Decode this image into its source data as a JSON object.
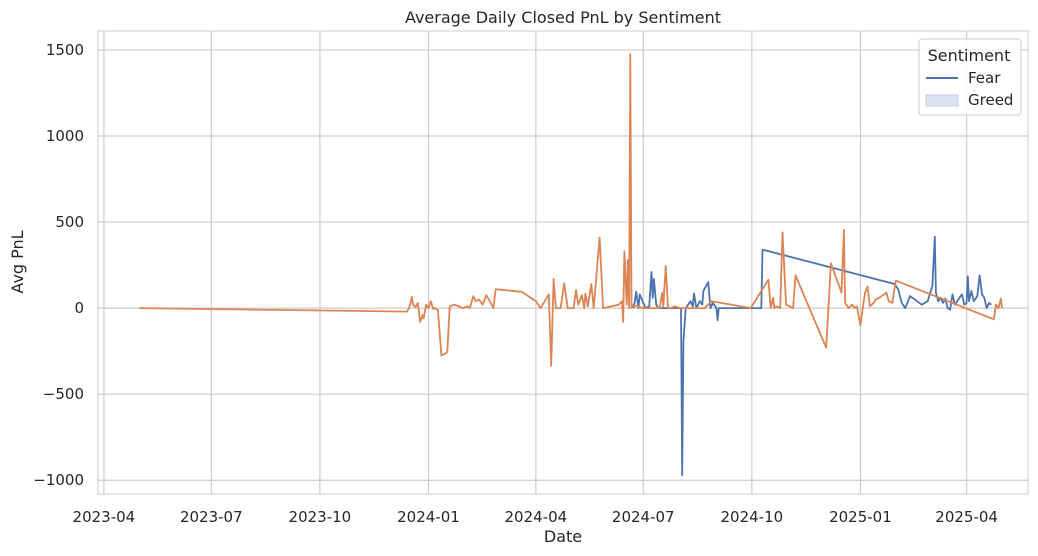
{
  "chart_data": {
    "type": "line",
    "title": "Average Daily Closed PnL by Sentiment",
    "xlabel": "Date",
    "ylabel": "Avg PnL",
    "x_axis_type": "date",
    "xlim": [
      "2023-03-27",
      "2025-05-23"
    ],
    "ylim": [
      -1080,
      1610
    ],
    "x_ticks": [
      "2023-04-01",
      "2023-07-01",
      "2023-10-01",
      "2024-01-01",
      "2024-04-01",
      "2024-07-01",
      "2024-10-01",
      "2025-01-01",
      "2025-04-01"
    ],
    "x_tick_labels": [
      "2023-04",
      "2023-07",
      "2023-10",
      "2024-01",
      "2024-04",
      "2024-07",
      "2024-10",
      "2025-01",
      "2025-04"
    ],
    "y_ticks": [
      -1000,
      -500,
      0,
      500,
      1000,
      1500
    ],
    "y_tick_labels": [
      "−1000",
      "−500",
      "0",
      "500",
      "1000",
      "1500"
    ],
    "grid": true,
    "legend": {
      "title": "Sentiment",
      "position": "top-right",
      "entries": [
        {
          "label": "Fear",
          "marker": "line",
          "color": "#4c72b0"
        },
        {
          "label": "Greed",
          "marker": "patch",
          "color": "#dbe3f0"
        }
      ]
    },
    "series": [
      {
        "name": "Fear",
        "color": "#4c72b0",
        "points": [
          [
            "2024-06-23",
            0
          ],
          [
            "2024-06-25",
            95
          ],
          [
            "2024-06-27",
            0
          ],
          [
            "2024-06-28",
            80
          ],
          [
            "2024-07-01",
            30
          ],
          [
            "2024-07-03",
            0
          ],
          [
            "2024-07-06",
            10
          ],
          [
            "2024-07-08",
            210
          ],
          [
            "2024-07-09",
            60
          ],
          [
            "2024-07-10",
            170
          ],
          [
            "2024-07-12",
            20
          ],
          [
            "2024-07-14",
            0
          ],
          [
            "2024-07-20",
            0
          ],
          [
            "2024-07-26",
            0
          ],
          [
            "2024-08-02",
            0
          ],
          [
            "2024-08-03",
            -970
          ],
          [
            "2024-08-04",
            -200
          ],
          [
            "2024-08-06",
            0
          ],
          [
            "2024-08-10",
            40
          ],
          [
            "2024-08-12",
            10
          ],
          [
            "2024-08-13",
            85
          ],
          [
            "2024-08-15",
            0
          ],
          [
            "2024-08-18",
            40
          ],
          [
            "2024-08-20",
            20
          ],
          [
            "2024-08-21",
            100
          ],
          [
            "2024-08-25",
            150
          ],
          [
            "2024-08-27",
            0
          ],
          [
            "2024-08-29",
            30
          ],
          [
            "2024-09-01",
            0
          ],
          [
            "2024-09-02",
            -70
          ],
          [
            "2024-09-03",
            0
          ],
          [
            "2024-09-10",
            0
          ],
          [
            "2024-09-20",
            0
          ],
          [
            "2024-10-01",
            0
          ],
          [
            "2024-10-05",
            0
          ],
          [
            "2024-10-09",
            0
          ],
          [
            "2024-10-10",
            340
          ],
          [
            "2025-01-30",
            140
          ],
          [
            "2025-02-02",
            110
          ],
          [
            "2025-02-05",
            30
          ],
          [
            "2025-02-08",
            0
          ],
          [
            "2025-02-12",
            70
          ],
          [
            "2025-02-18",
            40
          ],
          [
            "2025-02-22",
            20
          ],
          [
            "2025-02-27",
            40
          ],
          [
            "2025-03-03",
            130
          ],
          [
            "2025-03-05",
            415
          ],
          [
            "2025-03-06",
            90
          ],
          [
            "2025-03-08",
            40
          ],
          [
            "2025-03-10",
            60
          ],
          [
            "2025-03-12",
            30
          ],
          [
            "2025-03-14",
            55
          ],
          [
            "2025-03-16",
            0
          ],
          [
            "2025-03-18",
            -10
          ],
          [
            "2025-03-20",
            80
          ],
          [
            "2025-03-22",
            20
          ],
          [
            "2025-03-25",
            50
          ],
          [
            "2025-03-28",
            80
          ],
          [
            "2025-03-30",
            20
          ],
          [
            "2025-04-01",
            30
          ],
          [
            "2025-04-02",
            185
          ],
          [
            "2025-04-03",
            40
          ],
          [
            "2025-04-05",
            100
          ],
          [
            "2025-04-07",
            40
          ],
          [
            "2025-04-10",
            70
          ],
          [
            "2025-04-12",
            190
          ],
          [
            "2025-04-14",
            80
          ],
          [
            "2025-04-16",
            60
          ],
          [
            "2025-04-18",
            0
          ],
          [
            "2025-04-20",
            30
          ],
          [
            "2025-04-22",
            20
          ]
        ]
      },
      {
        "name": "Greed",
        "color": "#dd8452",
        "points": [
          [
            "2023-05-01",
            0
          ],
          [
            "2023-12-14",
            -20
          ],
          [
            "2023-12-16",
            10
          ],
          [
            "2023-12-18",
            65
          ],
          [
            "2023-12-19",
            20
          ],
          [
            "2023-12-21",
            5
          ],
          [
            "2023-12-23",
            30
          ],
          [
            "2023-12-25",
            -80
          ],
          [
            "2023-12-27",
            -40
          ],
          [
            "2023-12-28",
            -60
          ],
          [
            "2023-12-30",
            20
          ],
          [
            "2024-01-01",
            0
          ],
          [
            "2024-01-03",
            40
          ],
          [
            "2024-01-05",
            -5
          ],
          [
            "2024-01-07",
            0
          ],
          [
            "2024-01-09",
            -10
          ],
          [
            "2024-01-12",
            -275
          ],
          [
            "2024-01-15",
            -265
          ],
          [
            "2024-01-17",
            -255
          ],
          [
            "2024-01-19",
            10
          ],
          [
            "2024-01-23",
            20
          ],
          [
            "2024-01-27",
            10
          ],
          [
            "2024-01-30",
            0
          ],
          [
            "2024-02-03",
            10
          ],
          [
            "2024-02-05",
            0
          ],
          [
            "2024-02-08",
            70
          ],
          [
            "2024-02-10",
            40
          ],
          [
            "2024-02-13",
            50
          ],
          [
            "2024-02-16",
            20
          ],
          [
            "2024-02-19",
            75
          ],
          [
            "2024-02-22",
            40
          ],
          [
            "2024-02-25",
            0
          ],
          [
            "2024-02-27",
            110
          ],
          [
            "2024-03-20",
            95
          ],
          [
            "2024-04-01",
            40
          ],
          [
            "2024-04-05",
            0
          ],
          [
            "2024-04-12",
            80
          ],
          [
            "2024-04-14",
            -335
          ],
          [
            "2024-04-16",
            170
          ],
          [
            "2024-04-18",
            0
          ],
          [
            "2024-04-22",
            0
          ],
          [
            "2024-04-25",
            145
          ],
          [
            "2024-04-28",
            0
          ],
          [
            "2024-05-03",
            0
          ],
          [
            "2024-05-05",
            105
          ],
          [
            "2024-05-07",
            20
          ],
          [
            "2024-05-10",
            75
          ],
          [
            "2024-05-12",
            0
          ],
          [
            "2024-05-13",
            85
          ],
          [
            "2024-05-15",
            10
          ],
          [
            "2024-05-18",
            140
          ],
          [
            "2024-05-20",
            0
          ],
          [
            "2024-05-25",
            410
          ],
          [
            "2024-05-28",
            0
          ],
          [
            "2024-06-10",
            20
          ],
          [
            "2024-06-13",
            40
          ],
          [
            "2024-06-14",
            -80
          ],
          [
            "2024-06-15",
            330
          ],
          [
            "2024-06-17",
            20
          ],
          [
            "2024-06-18",
            280
          ],
          [
            "2024-06-19",
            0
          ],
          [
            "2024-06-20",
            1475
          ],
          [
            "2024-06-21",
            0
          ],
          [
            "2024-06-22",
            20
          ],
          [
            "2024-07-01",
            0
          ],
          [
            "2024-07-10",
            0
          ],
          [
            "2024-07-15",
            0
          ],
          [
            "2024-07-17",
            90
          ],
          [
            "2024-07-18",
            10
          ],
          [
            "2024-07-20",
            245
          ],
          [
            "2024-07-22",
            0
          ],
          [
            "2024-07-24",
            0
          ],
          [
            "2024-07-28",
            10
          ],
          [
            "2024-08-01",
            0
          ],
          [
            "2024-08-06",
            0
          ],
          [
            "2024-08-10",
            0
          ],
          [
            "2024-08-14",
            0
          ],
          [
            "2024-08-18",
            0
          ],
          [
            "2024-08-22",
            0
          ],
          [
            "2024-08-28",
            40
          ],
          [
            "2024-09-30",
            0
          ],
          [
            "2024-10-15",
            165
          ],
          [
            "2024-10-17",
            0
          ],
          [
            "2024-10-19",
            60
          ],
          [
            "2024-10-20",
            0
          ],
          [
            "2024-10-22",
            10
          ],
          [
            "2024-10-25",
            0
          ],
          [
            "2024-10-27",
            440
          ],
          [
            "2024-10-30",
            20
          ],
          [
            "2024-11-05",
            0
          ],
          [
            "2024-11-07",
            190
          ],
          [
            "2024-12-03",
            -230
          ],
          [
            "2024-12-07",
            260
          ],
          [
            "2024-12-16",
            90
          ],
          [
            "2024-12-18",
            455
          ],
          [
            "2024-12-19",
            30
          ],
          [
            "2024-12-22",
            0
          ],
          [
            "2024-12-25",
            20
          ],
          [
            "2024-12-27",
            0
          ],
          [
            "2024-12-29",
            10
          ],
          [
            "2025-01-01",
            -100
          ],
          [
            "2025-01-03",
            0
          ],
          [
            "2025-01-05",
            90
          ],
          [
            "2025-01-07",
            125
          ],
          [
            "2025-01-09",
            10
          ],
          [
            "2025-01-12",
            30
          ],
          [
            "2025-01-14",
            50
          ],
          [
            "2025-01-17",
            60
          ],
          [
            "2025-01-23",
            90
          ],
          [
            "2025-01-25",
            40
          ],
          [
            "2025-01-28",
            30
          ],
          [
            "2025-01-31",
            160
          ],
          [
            "2025-04-24",
            -65
          ],
          [
            "2025-04-26",
            20
          ],
          [
            "2025-04-28",
            0
          ],
          [
            "2025-04-30",
            55
          ],
          [
            "2025-05-01",
            0
          ]
        ]
      }
    ]
  }
}
